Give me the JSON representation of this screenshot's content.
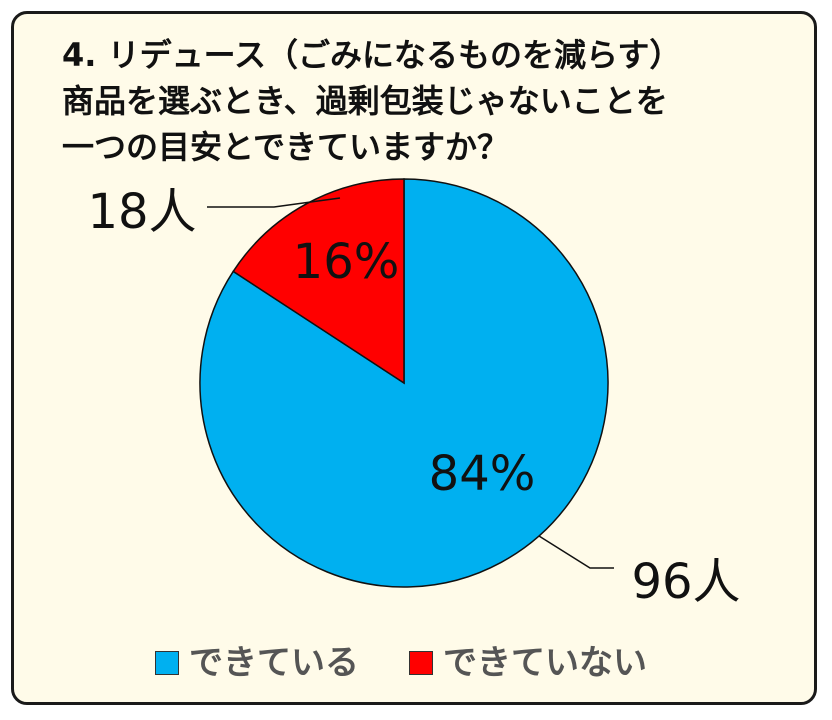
{
  "title": "4.  リデュース（ごみになるものを減らす）\n商品を選ぶとき、過剰包装じゃないことを\n一つの目安とできていますか？",
  "colors": {
    "card_background": "#fffbe9",
    "card_border": "#1a1a1a",
    "slice_stroke": "#111111"
  },
  "chart_data": {
    "type": "pie",
    "title": "4.  リデュース（ごみになるものを減らす）\n商品を選ぶとき、過剰包装じゃないことを\n一つの目安とできていますか？",
    "slices": [
      {
        "label": "できている",
        "value": 96,
        "percent_label": "84%",
        "count_label": "96人",
        "color": "#00b0f0"
      },
      {
        "label": "できていない",
        "value": 18,
        "percent_label": "16%",
        "count_label": "18人",
        "color": "#ff0000"
      }
    ],
    "start_angle_deg": 0,
    "direction": "clockwise",
    "legend_position": "bottom"
  }
}
